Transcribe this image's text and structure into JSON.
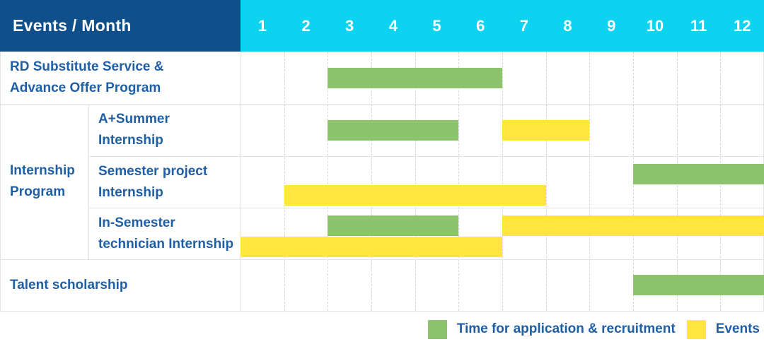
{
  "header": {
    "title": "Events / Month",
    "months": [
      "1",
      "2",
      "3",
      "4",
      "5",
      "6",
      "7",
      "8",
      "9",
      "10",
      "11",
      "12"
    ]
  },
  "colors": {
    "header_bg": "#0f4f8c",
    "months_bg": "#0cd4f0",
    "application_green": "#8cc46d",
    "events_yellow": "#ffe53c",
    "label_text": "#1f5fa6",
    "grid_line": "#e2e2e2",
    "grid_dash": "#d6d6d6"
  },
  "chart_data": {
    "type": "gantt",
    "title": "Events / Month",
    "months": [
      1,
      2,
      3,
      4,
      5,
      6,
      7,
      8,
      9,
      10,
      11,
      12
    ],
    "group": {
      "label_lines": [
        "Internship",
        "Program"
      ],
      "rows_spanned": [
        1,
        3
      ]
    },
    "rows": [
      {
        "label": "RD Substitute Service & Advance Offer Program",
        "label_lines": [
          "RD Substitute Service &",
          "Advance Offer Program"
        ],
        "indent": false,
        "bars": [
          {
            "series": "application",
            "start_month": 3,
            "end_month": 6,
            "lane": "center"
          }
        ]
      },
      {
        "label": "A+Summer Internship",
        "label_lines": [
          "A+Summer",
          "Internship"
        ],
        "indent": true,
        "bars": [
          {
            "series": "application",
            "start_month": 3,
            "end_month": 5,
            "lane": "center"
          },
          {
            "series": "events",
            "start_month": 7,
            "end_month": 8,
            "lane": "center"
          }
        ]
      },
      {
        "label": "Semester project Internship",
        "label_lines": [
          "Semester project",
          "Internship"
        ],
        "indent": true,
        "bars": [
          {
            "series": "application",
            "start_month": 10,
            "end_month": 12,
            "lane": "top"
          },
          {
            "series": "events",
            "start_month": 2,
            "end_month": 7,
            "lane": "bottom"
          }
        ]
      },
      {
        "label": "In-Semester technician Internship",
        "label_lines": [
          "In-Semester",
          "technician Internship"
        ],
        "indent": true,
        "bars": [
          {
            "series": "application",
            "start_month": 3,
            "end_month": 5,
            "lane": "top"
          },
          {
            "series": "events",
            "start_month": 7,
            "end_month": 12,
            "lane": "top"
          },
          {
            "series": "events",
            "start_month": 1,
            "end_month": 6,
            "lane": "bottom"
          }
        ]
      },
      {
        "label": "Talent scholarship",
        "label_lines": [
          "Talent scholarship"
        ],
        "indent": false,
        "bars": [
          {
            "series": "application",
            "start_month": 10,
            "end_month": 12,
            "lane": "center"
          }
        ]
      }
    ],
    "legend": [
      {
        "series": "application",
        "label": "Time for application & recruitment"
      },
      {
        "series": "events",
        "label": "Events"
      }
    ]
  }
}
